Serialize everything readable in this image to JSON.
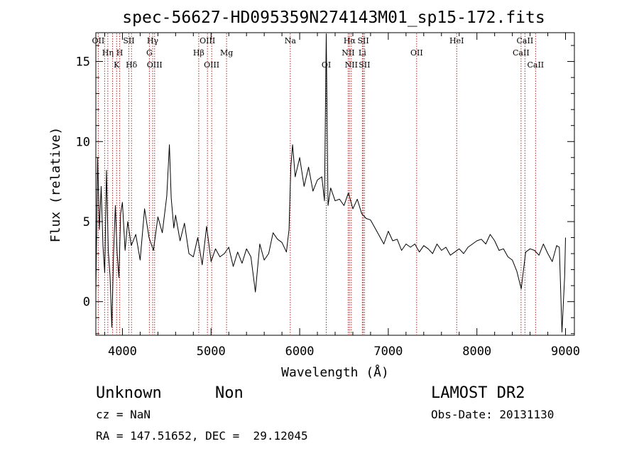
{
  "chart_data": {
    "type": "line",
    "title": "spec-56627-HD095359N274143M01_sp15-172.fits",
    "xlabel": "Wavelength (Å)",
    "ylabel": "Flux (relative)",
    "xlim": [
      3700,
      9100
    ],
    "ylim": [
      -2.1,
      16.8
    ],
    "x_ticks": [
      4000,
      5000,
      6000,
      7000,
      8000,
      9000
    ],
    "y_ticks": [
      0,
      5,
      10,
      15
    ],
    "line_color": "#000000",
    "marker_color": "#b22222",
    "grid": false,
    "legend": "none",
    "series": [
      {
        "x": [
          3700,
          3720,
          3740,
          3760,
          3780,
          3800,
          3820,
          3840,
          3860,
          3880,
          3900,
          3920,
          3940,
          3960,
          3980,
          4000,
          4030,
          4060,
          4100,
          4150,
          4200,
          4250,
          4300,
          4350,
          4400,
          4450,
          4500,
          4530,
          4550,
          4580,
          4600,
          4650,
          4700,
          4750,
          4800,
          4850,
          4900,
          4950,
          5000,
          5050,
          5100,
          5150,
          5200,
          5250,
          5300,
          5350,
          5400,
          5450,
          5500,
          5550,
          5600,
          5650,
          5700,
          5750,
          5800,
          5850,
          5880,
          5900,
          5920,
          5950,
          6000,
          6050,
          6100,
          6150,
          6200,
          6250,
          6280,
          6300,
          6320,
          6350,
          6400,
          6450,
          6500,
          6550,
          6600,
          6650,
          6700,
          6750,
          6800,
          6850,
          6900,
          6950,
          7000,
          7050,
          7100,
          7150,
          7200,
          7250,
          7300,
          7350,
          7400,
          7450,
          7500,
          7550,
          7600,
          7650,
          7700,
          7750,
          7800,
          7850,
          7900,
          7950,
          8000,
          8050,
          8100,
          8150,
          8200,
          8250,
          8300,
          8350,
          8400,
          8450,
          8500,
          8550,
          8600,
          8650,
          8700,
          8750,
          8800,
          8850,
          8900,
          8930,
          8960,
          8990,
          9000
        ],
        "y": [
          0.5,
          9.0,
          4.5,
          7.2,
          3.5,
          1.8,
          8.2,
          3.2,
          1.6,
          -1.6,
          3.1,
          6.0,
          3.0,
          1.5,
          5.5,
          6.2,
          3.2,
          5.0,
          3.5,
          4.2,
          2.6,
          5.8,
          4.0,
          3.2,
          5.3,
          4.3,
          6.6,
          9.8,
          6.5,
          4.6,
          5.4,
          3.8,
          4.9,
          3.0,
          2.8,
          4.0,
          2.3,
          4.7,
          2.5,
          3.3,
          2.8,
          3.0,
          3.4,
          2.2,
          3.1,
          2.4,
          3.3,
          2.8,
          0.6,
          3.6,
          2.6,
          3.0,
          4.3,
          3.9,
          3.7,
          3.1,
          4.5,
          8.4,
          9.8,
          7.8,
          9.0,
          7.2,
          8.4,
          6.9,
          7.6,
          7.8,
          6.3,
          16.7,
          6.0,
          7.1,
          6.3,
          6.4,
          6.0,
          6.8,
          5.8,
          6.4,
          5.5,
          5.2,
          5.1,
          4.6,
          4.1,
          3.6,
          4.4,
          3.8,
          3.9,
          3.2,
          3.6,
          3.4,
          3.6,
          3.1,
          3.5,
          3.3,
          3.0,
          3.6,
          3.2,
          3.4,
          2.9,
          3.1,
          3.3,
          3.0,
          3.4,
          3.6,
          3.8,
          3.9,
          3.6,
          4.2,
          3.8,
          3.2,
          3.3,
          2.8,
          2.6,
          1.9,
          0.8,
          3.1,
          3.3,
          3.2,
          2.9,
          3.6,
          3.0,
          2.5,
          3.5,
          3.4,
          -1.9,
          1.6,
          4.0
        ]
      }
    ],
    "line_markers": [
      {
        "wl": 3727,
        "label": "OII",
        "row": 0
      },
      {
        "wl": 3799,
        "label": "",
        "row": -1
      },
      {
        "wl": 3835,
        "label": "Hη",
        "row": 1
      },
      {
        "wl": 3889,
        "label": "",
        "row": -1
      },
      {
        "wl": 3934,
        "label": "K",
        "row": 2
      },
      {
        "wl": 3969,
        "label": "H",
        "row": 1
      },
      {
        "wl": 4072,
        "label": "SII",
        "row": 0
      },
      {
        "wl": 4102,
        "label": "Hδ",
        "row": 2
      },
      {
        "wl": 4304,
        "label": "G",
        "row": 1
      },
      {
        "wl": 4341,
        "label": "Hγ",
        "row": 0
      },
      {
        "wl": 4363,
        "label": "OIII",
        "row": 2
      },
      {
        "wl": 4861,
        "label": "Hβ",
        "row": 1
      },
      {
        "wl": 4959,
        "label": "OIII",
        "row": 0
      },
      {
        "wl": 5007,
        "label": "OIII",
        "row": 2
      },
      {
        "wl": 5175,
        "label": "Mg",
        "row": 1
      },
      {
        "wl": 5894,
        "label": "Na",
        "row": 0
      },
      {
        "wl": 6300,
        "label": "OI",
        "row": 2
      },
      {
        "wl": 6548,
        "label": "NII",
        "row": 1
      },
      {
        "wl": 6563,
        "label": "Hα",
        "row": 0
      },
      {
        "wl": 6583,
        "label": "NII",
        "row": 2
      },
      {
        "wl": 6707,
        "label": "Li",
        "row": 1
      },
      {
        "wl": 6717,
        "label": "SII",
        "row": 0
      },
      {
        "wl": 6731,
        "label": "SII",
        "row": 2
      },
      {
        "wl": 7320,
        "label": "OII",
        "row": 1
      },
      {
        "wl": 7772,
        "label": "HeI",
        "row": 0
      },
      {
        "wl": 8498,
        "label": "CaII",
        "row": 1
      },
      {
        "wl": 8542,
        "label": "CaII",
        "row": 0
      },
      {
        "wl": 8662,
        "label": "CaII",
        "row": 2
      }
    ]
  },
  "info": {
    "object_class": "Unknown",
    "object_subclass": "Non",
    "survey": "LAMOST DR2",
    "redshift": "cz = NaN",
    "obs_date": "Obs-Date: 20131130",
    "coords": "RA = 147.51652, DEC =  29.12045"
  }
}
